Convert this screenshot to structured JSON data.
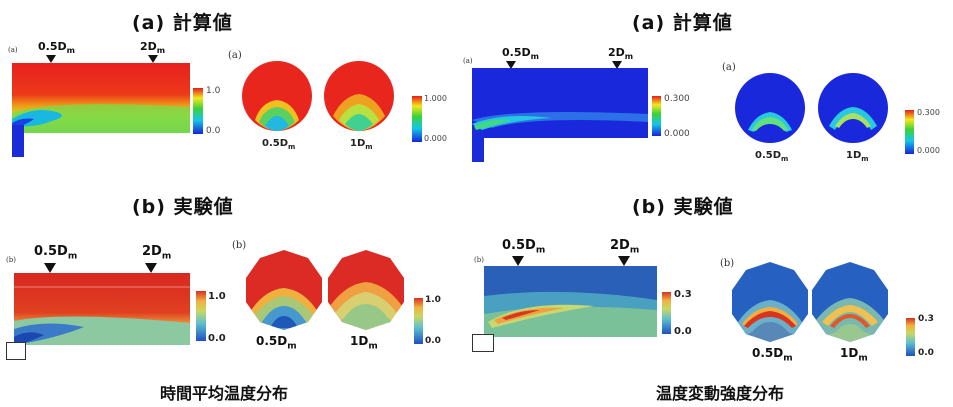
{
  "left": {
    "calc_title": "(a) 計算値",
    "exp_title": "(b) 実験値",
    "caption": "時間平均温度分布",
    "calc": {
      "panel_tag": "(a)",
      "circle_tag": "(a)",
      "marker1": "0.5D",
      "marker1_sub": "m",
      "marker2": "2D",
      "marker2_sub": "m",
      "side_cb_max": "1.0",
      "side_cb_min": "0.0",
      "circ_cb_max": "1.000",
      "circ_cb_min": "0.000",
      "circle1_label": "0.5D",
      "circle1_sub": "m",
      "circle2_label": "1D",
      "circle2_sub": "m"
    },
    "exp": {
      "panel_tag": "(b)",
      "circle_tag": "(b)",
      "marker1": "0.5D",
      "marker1_sub": "m",
      "marker2": "2D",
      "marker2_sub": "m",
      "side_cb_max": "1.0",
      "side_cb_min": "0.0",
      "circ_cb_max": "1.0",
      "circ_cb_min": "0.0",
      "circle1_label": "0.5D",
      "circle1_sub": "m",
      "circle2_label": "1D",
      "circle2_sub": "m"
    }
  },
  "right": {
    "calc_title": "(a) 計算値",
    "exp_title": "(b) 実験値",
    "caption": "温度変動強度分布",
    "calc": {
      "panel_tag": "(a)",
      "circle_tag": "(a)",
      "marker1": "0.5D",
      "marker1_sub": "m",
      "marker2": "2D",
      "marker2_sub": "m",
      "side_cb_max": "0.300",
      "side_cb_min": "0.000",
      "circ_cb_max": "0.300",
      "circ_cb_min": "0.000",
      "circle1_label": "0.5D",
      "circle1_sub": "m",
      "circle2_label": "1D",
      "circle2_sub": "m"
    },
    "exp": {
      "panel_tag": "(b)",
      "circle_tag": "(b)",
      "marker1": "0.5D",
      "marker1_sub": "m",
      "marker2": "2D",
      "marker2_sub": "m",
      "side_cb_max": "0.3",
      "side_cb_min": "0.0",
      "circ_cb_max": "0.3",
      "circ_cb_min": "0.0",
      "circle1_label": "0.5D",
      "circle1_sub": "m",
      "circle2_label": "1D",
      "circle2_sub": "m"
    }
  },
  "colors": {
    "hot": "#e8262a",
    "cold": "#1a2bd8",
    "mid": "#2fd65a"
  }
}
